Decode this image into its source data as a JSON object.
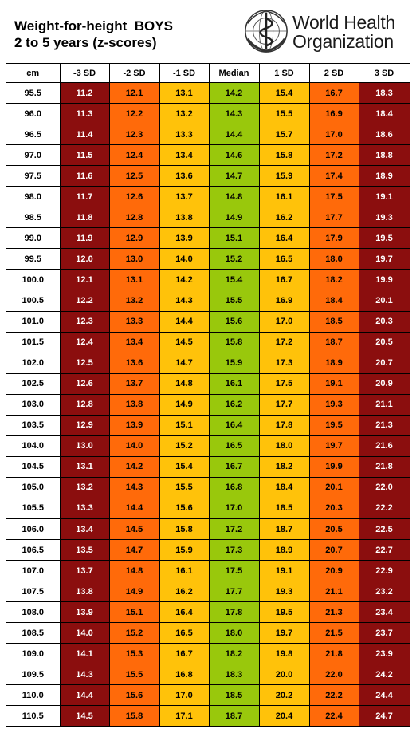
{
  "header": {
    "title_line1": "Weight-for-height  BOYS",
    "title_line2": "2 to 5 years (z-scores)",
    "logo_line1": "World Health",
    "logo_line2": "Organization",
    "logo_icon": "who-emblem-icon"
  },
  "colors": {
    "sd3": "#8b0e0e",
    "sd2": "#ff6a0a",
    "sd1": "#ffc20a",
    "median": "#99c80c"
  },
  "table": {
    "columns": [
      "cm",
      "-3 SD",
      "-2 SD",
      "-1 SD",
      "Median",
      "1 SD",
      "2 SD",
      "3 SD"
    ],
    "rows": [
      [
        "95.5",
        "11.2",
        "12.1",
        "13.1",
        "14.2",
        "15.4",
        "16.7",
        "18.3"
      ],
      [
        "96.0",
        "11.3",
        "12.2",
        "13.2",
        "14.3",
        "15.5",
        "16.9",
        "18.4"
      ],
      [
        "96.5",
        "11.4",
        "12.3",
        "13.3",
        "14.4",
        "15.7",
        "17.0",
        "18.6"
      ],
      [
        "97.0",
        "11.5",
        "12.4",
        "13.4",
        "14.6",
        "15.8",
        "17.2",
        "18.8"
      ],
      [
        "97.5",
        "11.6",
        "12.5",
        "13.6",
        "14.7",
        "15.9",
        "17.4",
        "18.9"
      ],
      [
        "98.0",
        "11.7",
        "12.6",
        "13.7",
        "14.8",
        "16.1",
        "17.5",
        "19.1"
      ],
      [
        "98.5",
        "11.8",
        "12.8",
        "13.8",
        "14.9",
        "16.2",
        "17.7",
        "19.3"
      ],
      [
        "99.0",
        "11.9",
        "12.9",
        "13.9",
        "15.1",
        "16.4",
        "17.9",
        "19.5"
      ],
      [
        "99.5",
        "12.0",
        "13.0",
        "14.0",
        "15.2",
        "16.5",
        "18.0",
        "19.7"
      ],
      [
        "100.0",
        "12.1",
        "13.1",
        "14.2",
        "15.4",
        "16.7",
        "18.2",
        "19.9"
      ],
      [
        "100.5",
        "12.2",
        "13.2",
        "14.3",
        "15.5",
        "16.9",
        "18.4",
        "20.1"
      ],
      [
        "101.0",
        "12.3",
        "13.3",
        "14.4",
        "15.6",
        "17.0",
        "18.5",
        "20.3"
      ],
      [
        "101.5",
        "12.4",
        "13.4",
        "14.5",
        "15.8",
        "17.2",
        "18.7",
        "20.5"
      ],
      [
        "102.0",
        "12.5",
        "13.6",
        "14.7",
        "15.9",
        "17.3",
        "18.9",
        "20.7"
      ],
      [
        "102.5",
        "12.6",
        "13.7",
        "14.8",
        "16.1",
        "17.5",
        "19.1",
        "20.9"
      ],
      [
        "103.0",
        "12.8",
        "13.8",
        "14.9",
        "16.2",
        "17.7",
        "19.3",
        "21.1"
      ],
      [
        "103.5",
        "12.9",
        "13.9",
        "15.1",
        "16.4",
        "17.8",
        "19.5",
        "21.3"
      ],
      [
        "104.0",
        "13.0",
        "14.0",
        "15.2",
        "16.5",
        "18.0",
        "19.7",
        "21.6"
      ],
      [
        "104.5",
        "13.1",
        "14.2",
        "15.4",
        "16.7",
        "18.2",
        "19.9",
        "21.8"
      ],
      [
        "105.0",
        "13.2",
        "14.3",
        "15.5",
        "16.8",
        "18.4",
        "20.1",
        "22.0"
      ],
      [
        "105.5",
        "13.3",
        "14.4",
        "15.6",
        "17.0",
        "18.5",
        "20.3",
        "22.2"
      ],
      [
        "106.0",
        "13.4",
        "14.5",
        "15.8",
        "17.2",
        "18.7",
        "20.5",
        "22.5"
      ],
      [
        "106.5",
        "13.5",
        "14.7",
        "15.9",
        "17.3",
        "18.9",
        "20.7",
        "22.7"
      ],
      [
        "107.0",
        "13.7",
        "14.8",
        "16.1",
        "17.5",
        "19.1",
        "20.9",
        "22.9"
      ],
      [
        "107.5",
        "13.8",
        "14.9",
        "16.2",
        "17.7",
        "19.3",
        "21.1",
        "23.2"
      ],
      [
        "108.0",
        "13.9",
        "15.1",
        "16.4",
        "17.8",
        "19.5",
        "21.3",
        "23.4"
      ],
      [
        "108.5",
        "14.0",
        "15.2",
        "16.5",
        "18.0",
        "19.7",
        "21.5",
        "23.7"
      ],
      [
        "109.0",
        "14.1",
        "15.3",
        "16.7",
        "18.2",
        "19.8",
        "21.8",
        "23.9"
      ],
      [
        "109.5",
        "14.3",
        "15.5",
        "16.8",
        "18.3",
        "20.0",
        "22.0",
        "24.2"
      ],
      [
        "110.0",
        "14.4",
        "15.6",
        "17.0",
        "18.5",
        "20.2",
        "22.2",
        "24.4"
      ],
      [
        "110.5",
        "14.5",
        "15.8",
        "17.1",
        "18.7",
        "20.4",
        "22.4",
        "24.7"
      ]
    ]
  }
}
